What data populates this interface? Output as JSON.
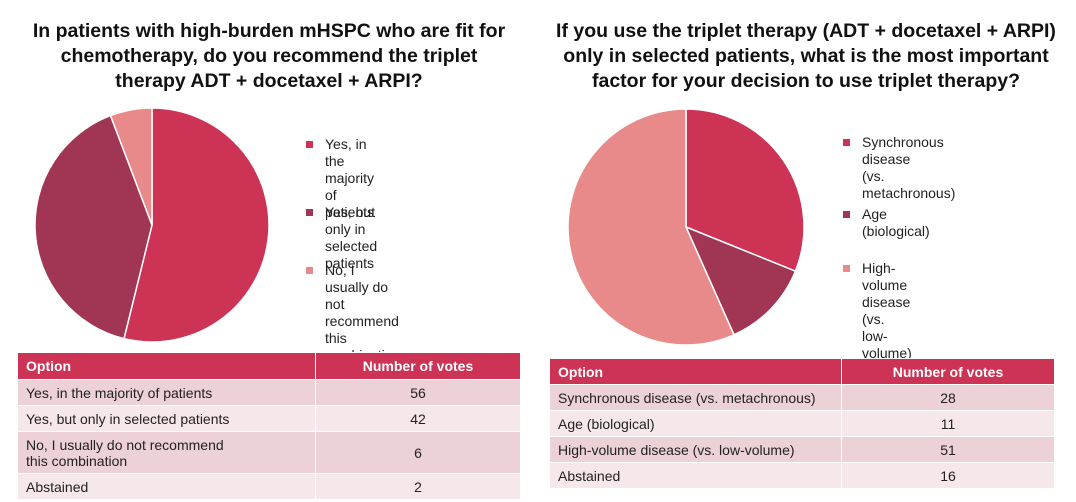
{
  "colors": {
    "slice_1": "#cc3355",
    "slice_2": "#a03554",
    "slice_3": "#e98a8a",
    "header_bg": "#cc3355",
    "row_odd": "#ecd1d6",
    "row_even": "#f6e7ea"
  },
  "chart_data": [
    {
      "type": "pie",
      "title": "In patients with high-burden mHSPC who are fit for\nchemotherapy, do you recommend the triplet\ntherapy ADT + docetaxel + ARPI?",
      "categories": [
        "Yes, in the majority\nof patients",
        "Yes, but only in\nselected patients",
        "No, I usually do not\nrecommend this\ncombination"
      ],
      "values": [
        56,
        42,
        6
      ],
      "colors": [
        "#cc3355",
        "#a03554",
        "#e98a8a"
      ],
      "legend": "right",
      "table": {
        "headers": [
          "Option",
          "Number of votes"
        ],
        "rows": [
          [
            "Yes, in the majority of patients",
            "56"
          ],
          [
            "Yes, but only in selected patients",
            "42"
          ],
          [
            "No, I usually do not recommend\nthis combination",
            "6"
          ],
          [
            "Abstained",
            "2"
          ]
        ]
      }
    },
    {
      "type": "pie",
      "title": "If you use the triplet therapy (ADT + docetaxel + ARPI)\nonly in selected patients, what is the most important\nfactor for your decision to use triplet therapy?",
      "categories": [
        "Synchronous disease\n(vs. metachronous)",
        "Age (biological)",
        "High-volume disease\n(vs. low-volume)"
      ],
      "values": [
        28,
        11,
        51
      ],
      "colors": [
        "#cc3355",
        "#a03554",
        "#e98a8a"
      ],
      "legend": "right",
      "table": {
        "headers": [
          "Option",
          "Number of votes"
        ],
        "rows": [
          [
            "Synchronous disease (vs. metachronous)",
            "28"
          ],
          [
            "Age (biological)",
            "11"
          ],
          [
            "High-volume disease (vs. low-volume)",
            "51"
          ],
          [
            "Abstained",
            "16"
          ]
        ]
      }
    }
  ]
}
